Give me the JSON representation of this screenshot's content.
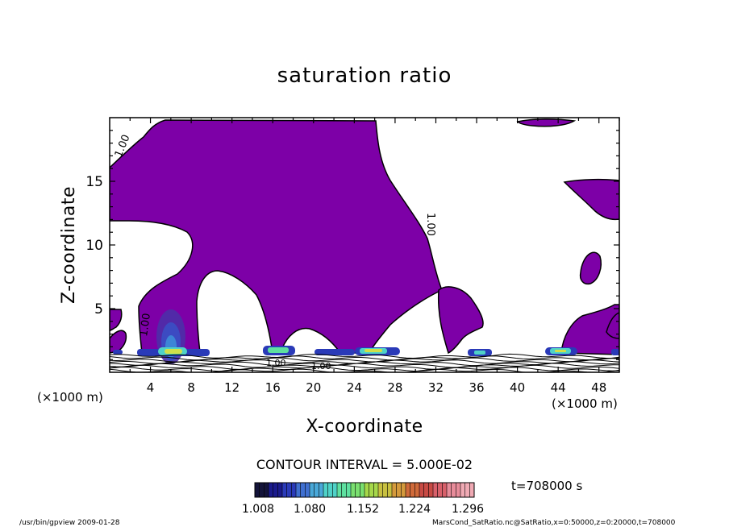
{
  "chart_data": {
    "type": "contour",
    "title": "saturation ratio",
    "xlabel": "X-coordinate",
    "ylabel": "Z-coordinate",
    "x_unit_left": "(×1000 m)",
    "x_unit_right": "(×1000 m)",
    "xlim": [
      0,
      50
    ],
    "ylim": [
      0,
      20
    ],
    "x_ticks": [
      4,
      8,
      12,
      16,
      20,
      24,
      28,
      32,
      36,
      40,
      44,
      48
    ],
    "y_ticks": [
      5,
      10,
      15
    ],
    "contour_interval_text": "CONTOUR INTERVAL = 5.000E-02",
    "time_text": "t=708000 s",
    "colorbar": {
      "tick_labels": [
        "1.008",
        "1.080",
        "1.152",
        "1.224",
        "1.296"
      ],
      "colors": [
        "#14143a",
        "#1a1a8c",
        "#2a3ab8",
        "#3f6fd0",
        "#49a8d8",
        "#4fd2c8",
        "#5ee0a0",
        "#7ae070",
        "#a6d84a",
        "#c8c040",
        "#d49a3c",
        "#d06a3a",
        "#c84a44",
        "#d8606a",
        "#e88c9a",
        "#f0aab4"
      ]
    },
    "contour_labels": [
      "1.00",
      "1.00",
      "1.00",
      "1.00",
      "1.00"
    ],
    "fill_color": "#7d00a7"
  },
  "footer": {
    "left": "/usr/bin/gpview   2009-01-28",
    "right": "MarsCond_SatRatio.nc@SatRatio,x=0:50000,z=0:20000,t=708000"
  }
}
